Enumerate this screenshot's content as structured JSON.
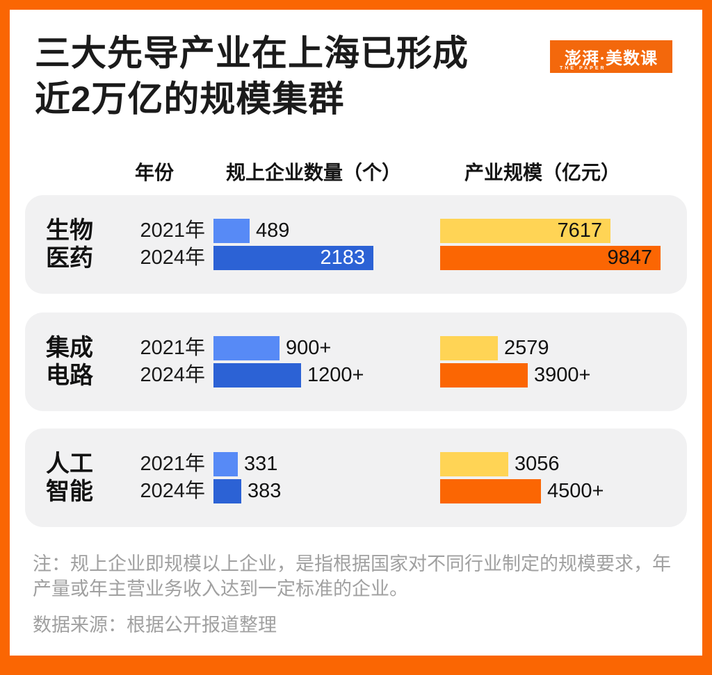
{
  "title": {
    "line1": "三大先导产业在上海已形成",
    "line2": "近2万亿的规模集群"
  },
  "logo": {
    "main": "澎湃·美数课",
    "sub": "THE PAPER",
    "bg_color": "#F3680C"
  },
  "columns": {
    "year": "年份",
    "count": "规上企业数量（个）",
    "size": "产业规模（亿元）"
  },
  "colors": {
    "frame": "#FA6603",
    "count_2021": "#578AF6",
    "count_2024": "#2C62D5",
    "size_2021": "#FFD455",
    "size_2024": "#FB6603",
    "panel_bg": "#F1F1F2"
  },
  "groups": [
    {
      "category": [
        "生物",
        "医药"
      ],
      "rows": [
        {
          "year": "2021年",
          "count": {
            "label": "489",
            "value": 489,
            "inside": false,
            "label_color": "#121212"
          },
          "size": {
            "label": "7617",
            "value": 7617,
            "inside": true,
            "label_color": "#121212"
          }
        },
        {
          "year": "2024年",
          "count": {
            "label": "2183",
            "value": 2183,
            "inside": true,
            "label_color": "#FFFFFF"
          },
          "size": {
            "label": "9847",
            "value": 9847,
            "inside": true,
            "label_color": "#121212"
          }
        }
      ]
    },
    {
      "category": [
        "集成",
        "电路"
      ],
      "rows": [
        {
          "year": "2021年",
          "count": {
            "label": "900+",
            "value": 900,
            "inside": false,
            "label_color": "#121212"
          },
          "size": {
            "label": "2579",
            "value": 2579,
            "inside": false,
            "label_color": "#121212"
          }
        },
        {
          "year": "2024年",
          "count": {
            "label": "1200+",
            "value": 1200,
            "inside": false,
            "label_color": "#121212"
          },
          "size": {
            "label": "3900+",
            "value": 3900,
            "inside": false,
            "label_color": "#121212"
          }
        }
      ]
    },
    {
      "category": [
        "人工",
        "智能"
      ],
      "rows": [
        {
          "year": "2021年",
          "count": {
            "label": "331",
            "value": 331,
            "inside": false,
            "label_color": "#121212"
          },
          "size": {
            "label": "3056",
            "value": 3056,
            "inside": false,
            "label_color": "#121212"
          }
        },
        {
          "year": "2024年",
          "count": {
            "label": "383",
            "value": 383,
            "inside": false,
            "label_color": "#121212"
          },
          "size": {
            "label": "4500+",
            "value": 4500,
            "inside": false,
            "label_color": "#121212"
          }
        }
      ]
    }
  ],
  "note": {
    "line1": "注：规上企业即规模以上企业，是指根据国家对不同行业制定的规模要求，年",
    "line2": "产量或年主营业务收入达到一定标准的企业。",
    "source": "数据来源：根据公开报道整理"
  },
  "chart_data": {
    "type": "bar",
    "orientation": "horizontal",
    "title": "三大先导产业在上海已形成近2万亿的规模集群",
    "categories": [
      "生物医药",
      "集成电路",
      "人工智能"
    ],
    "series": [
      {
        "name": "规上企业数量（个）2021年",
        "values": [
          489,
          900,
          331
        ],
        "labels": [
          "489",
          "900+",
          "331"
        ],
        "color": "#578AF6"
      },
      {
        "name": "规上企业数量（个）2024年",
        "values": [
          2183,
          1200,
          383
        ],
        "labels": [
          "2183",
          "1200+",
          "383"
        ],
        "color": "#2C62D5"
      },
      {
        "name": "产业规模（亿元）2021年",
        "values": [
          7617,
          2579,
          3056
        ],
        "labels": [
          "7617",
          "2579",
          "3056"
        ],
        "color": "#FFD455"
      },
      {
        "name": "产业规模（亿元）2024年",
        "values": [
          9847,
          3900,
          4500
        ],
        "labels": [
          "9847",
          "3900+",
          "4500+"
        ],
        "color": "#FB6603"
      }
    ],
    "legend_position": "none",
    "grid": false,
    "note": "注：规上企业即规模以上企业，是指根据国家对不同行业制定的规模要求，年产量或年主营业务收入达到一定标准的企业。",
    "source": "数据来源：根据公开报道整理"
  }
}
